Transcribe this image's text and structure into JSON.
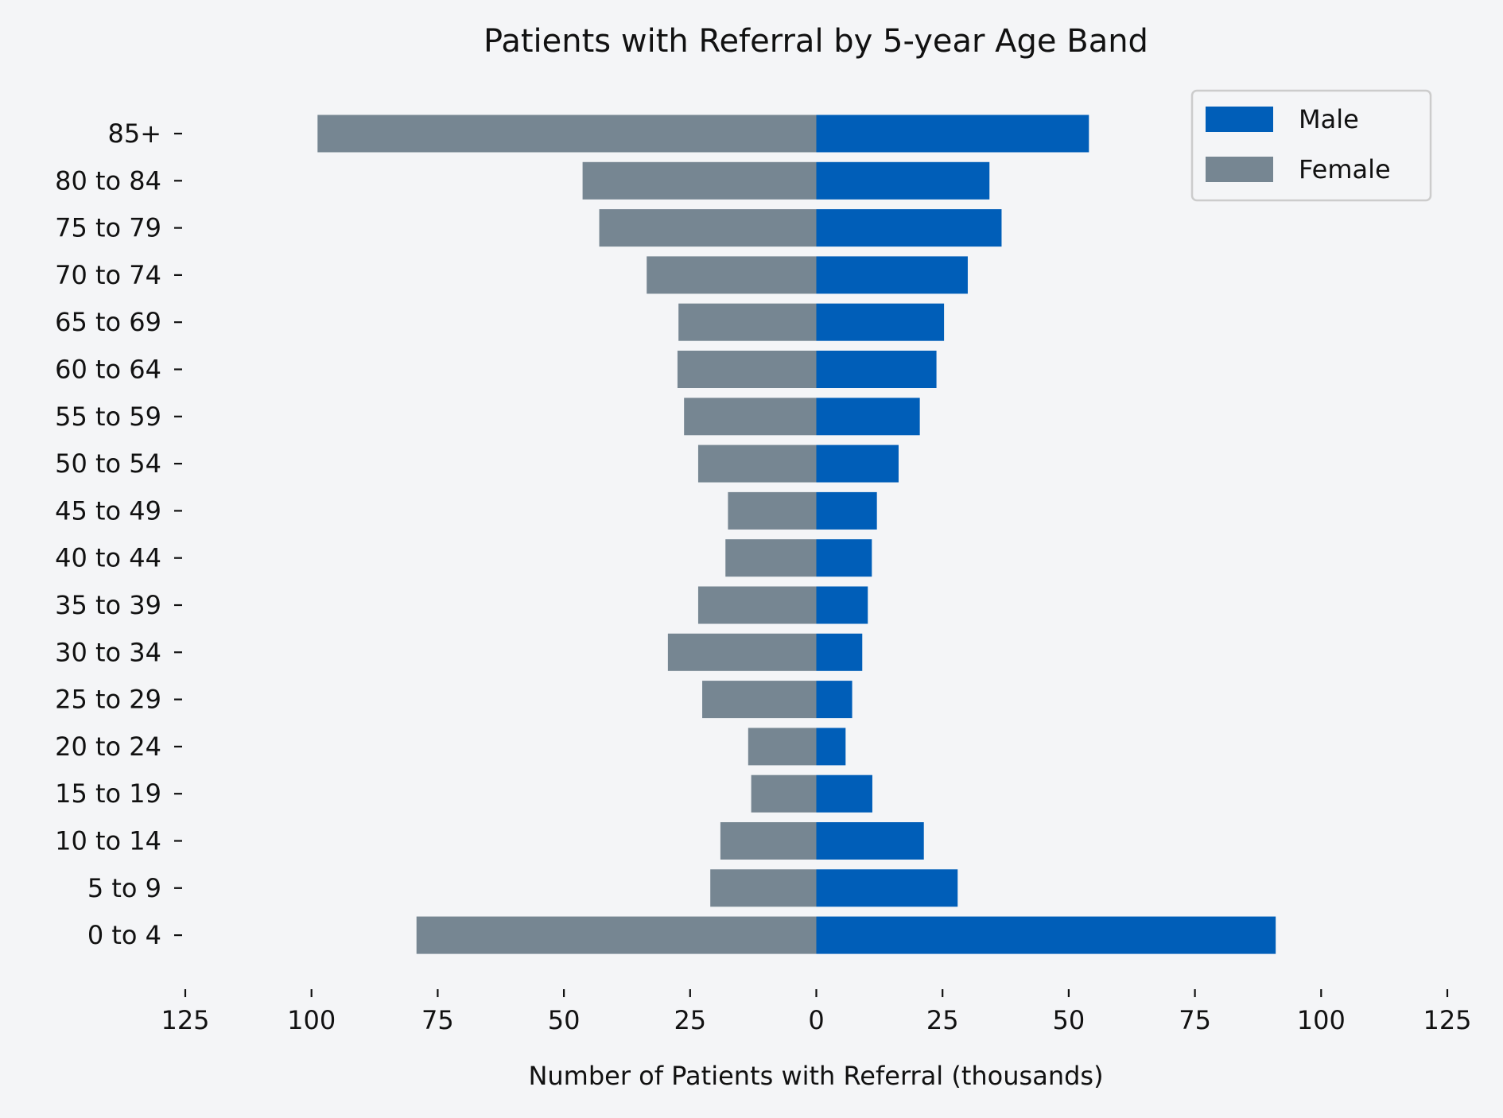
{
  "chart_data": {
    "type": "bar",
    "orientation": "horizontal",
    "style": "population-pyramid",
    "title": "Patients with Referral by 5-year Age Band",
    "xlabel": "Number of Patients with Referral (thousands)",
    "ylabel": "",
    "xlim": [
      -125,
      125
    ],
    "xticks": [
      -125,
      -100,
      -75,
      -50,
      -25,
      0,
      25,
      50,
      75,
      100,
      125
    ],
    "xtick_labels": [
      "125",
      "100",
      "75",
      "50",
      "25",
      "0",
      "25",
      "50",
      "75",
      "100",
      "125"
    ],
    "categories": [
      "0 to 4",
      "5 to 9",
      "10 to 14",
      "15 to 19",
      "20 to 24",
      "25 to 29",
      "30 to 34",
      "35 to 39",
      "40 to 44",
      "45 to 49",
      "50 to 54",
      "55 to 59",
      "60 to 64",
      "65 to 69",
      "70 to 74",
      "75 to 79",
      "80 to 84",
      "85+"
    ],
    "series": [
      {
        "name": "Male",
        "color": "#005eb8",
        "side": "right",
        "values": [
          91,
          28,
          21.3,
          11.1,
          5.8,
          7.1,
          9.1,
          10.2,
          11,
          12,
          16.3,
          20.5,
          23.8,
          25.3,
          30,
          36.7,
          34.3,
          54
        ]
      },
      {
        "name": "Female",
        "color": "#768692",
        "side": "left",
        "values": [
          79.2,
          21,
          19,
          12.9,
          13.5,
          22.6,
          29.4,
          23.4,
          18,
          17.5,
          23.4,
          26.2,
          27.5,
          27.3,
          33.6,
          43,
          46.3,
          98.8
        ]
      }
    ],
    "grid": false,
    "legend_position": "top-right",
    "background_color": "#f4f5f7"
  }
}
